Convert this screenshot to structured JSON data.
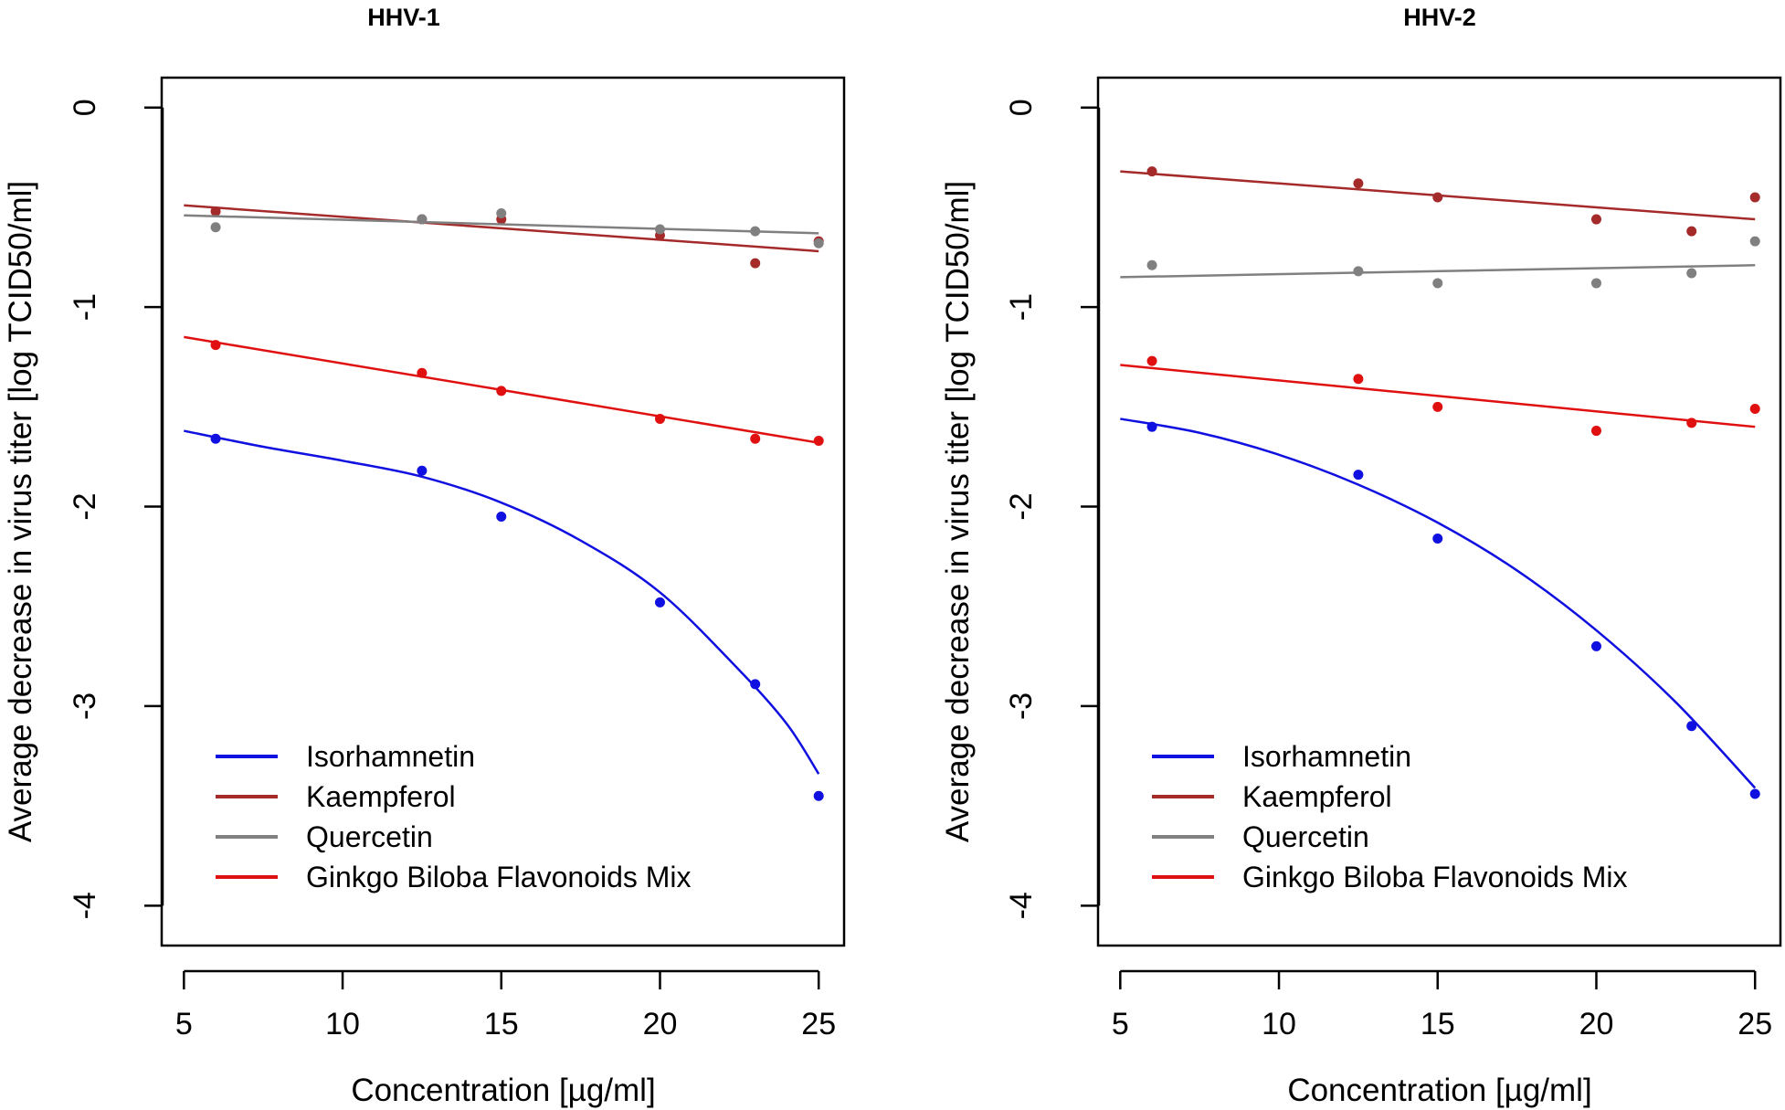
{
  "colors": {
    "Isorhamnetin": "#1010e0",
    "Kaempferol": "#a52a2a",
    "Quercetin": "#808080",
    "Ginkgo Biloba Flavonoids Mix": "#e01010"
  },
  "chart_data": [
    {
      "type": "scatter",
      "title": "HHV-1",
      "xlabel": "Concentration [µg/ml]",
      "ylabel": "Average decrease in virus titer [log TCID50/ml]",
      "xlim": [
        4.3,
        25.8
      ],
      "ylim": [
        -4.2,
        0.15
      ],
      "xticks": [
        5,
        10,
        15,
        20,
        25
      ],
      "xtick_labels": [
        "5",
        "10",
        "15",
        "20",
        "25"
      ],
      "yticks": [
        0,
        -1,
        -2,
        -3,
        -4
      ],
      "ytick_labels": [
        "0",
        "-1",
        "-2",
        "-3",
        "-4"
      ],
      "legend": [
        "Isorhamnetin",
        "Kaempferol",
        "Quercetin",
        "Ginkgo Biloba Flavonoids Mix"
      ],
      "legend_position": "bottom-left",
      "series": [
        {
          "name": "Isorhamnetin",
          "x": [
            6,
            12.5,
            15,
            20,
            23,
            25
          ],
          "y": [
            -1.66,
            -1.82,
            -2.05,
            -2.48,
            -2.89,
            -3.45
          ],
          "fit": {
            "x": [
              5,
              7.5,
              10,
              12.5,
              15,
              17.5,
              20,
              22.5,
              24,
              25
            ],
            "y": [
              -1.62,
              -1.7,
              -1.77,
              -1.85,
              -1.98,
              -2.17,
              -2.43,
              -2.82,
              -3.09,
              -3.34
            ]
          }
        },
        {
          "name": "Kaempferol",
          "x": [
            6,
            12.5,
            15,
            20,
            23,
            25
          ],
          "y": [
            -0.52,
            -0.56,
            -0.56,
            -0.64,
            -0.78,
            -0.67
          ],
          "fit": {
            "x": [
              5,
              25
            ],
            "y": [
              -0.49,
              -0.72
            ]
          }
        },
        {
          "name": "Quercetin",
          "x": [
            6,
            12.5,
            15,
            20,
            23,
            25
          ],
          "y": [
            -0.6,
            -0.56,
            -0.53,
            -0.61,
            -0.62,
            -0.68
          ],
          "fit": {
            "x": [
              5,
              25
            ],
            "y": [
              -0.54,
              -0.63
            ]
          }
        },
        {
          "name": "Ginkgo Biloba Flavonoids Mix",
          "x": [
            6,
            12.5,
            15,
            20,
            23,
            25
          ],
          "y": [
            -1.19,
            -1.33,
            -1.42,
            -1.56,
            -1.66,
            -1.67
          ],
          "fit": {
            "x": [
              5,
              25
            ],
            "y": [
              -1.15,
              -1.68
            ]
          }
        }
      ]
    },
    {
      "type": "scatter",
      "title": "HHV-2",
      "xlabel": "Concentration [µg/ml]",
      "ylabel": "Average decrease in virus titer [log TCID50/ml]",
      "xlim": [
        4.3,
        25.8
      ],
      "ylim": [
        -4.2,
        0.15
      ],
      "xticks": [
        5,
        10,
        15,
        20,
        25
      ],
      "xtick_labels": [
        "5",
        "10",
        "15",
        "20",
        "25"
      ],
      "yticks": [
        0,
        -1,
        -2,
        -3,
        -4
      ],
      "ytick_labels": [
        "0",
        "-1",
        "-2",
        "-3",
        "-4"
      ],
      "legend": [
        "Isorhamnetin",
        "Kaempferol",
        "Quercetin",
        "Ginkgo Biloba Flavonoids Mix"
      ],
      "legend_position": "bottom-left",
      "series": [
        {
          "name": "Isorhamnetin",
          "x": [
            6,
            12.5,
            15,
            20,
            23,
            25
          ],
          "y": [
            -1.6,
            -1.84,
            -2.16,
            -2.7,
            -3.1,
            -3.44
          ],
          "fit": {
            "x": [
              5,
              7.5,
              10,
              12.5,
              15,
              17.5,
              20,
              22.5,
              25
            ],
            "y": [
              -1.56,
              -1.63,
              -1.74,
              -1.89,
              -2.08,
              -2.32,
              -2.62,
              -2.98,
              -3.41
            ]
          }
        },
        {
          "name": "Kaempferol",
          "x": [
            6,
            12.5,
            15,
            20,
            23,
            25
          ],
          "y": [
            -0.32,
            -0.38,
            -0.45,
            -0.56,
            -0.62,
            -0.45
          ],
          "fit": {
            "x": [
              5,
              25
            ],
            "y": [
              -0.32,
              -0.56
            ]
          }
        },
        {
          "name": "Quercetin",
          "x": [
            6,
            12.5,
            15,
            20,
            23,
            25
          ],
          "y": [
            -0.79,
            -0.82,
            -0.88,
            -0.88,
            -0.83,
            -0.67
          ],
          "fit": {
            "x": [
              5,
              25
            ],
            "y": [
              -0.85,
              -0.79
            ]
          }
        },
        {
          "name": "Ginkgo Biloba Flavonoids Mix",
          "x": [
            6,
            12.5,
            15,
            20,
            23,
            25
          ],
          "y": [
            -1.27,
            -1.36,
            -1.5,
            -1.62,
            -1.58,
            -1.51
          ],
          "fit": {
            "x": [
              5,
              25
            ],
            "y": [
              -1.29,
              -1.6
            ]
          }
        }
      ]
    }
  ]
}
